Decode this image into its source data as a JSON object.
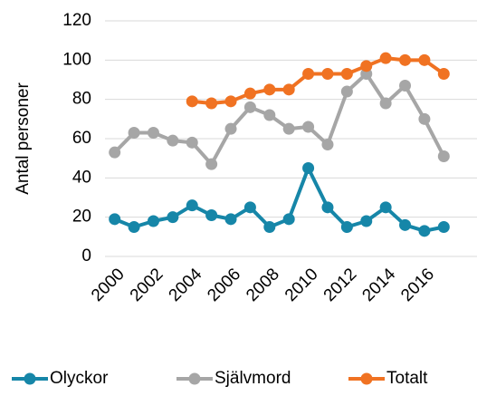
{
  "chart_data": {
    "type": "line",
    "y_label": "Antal personer",
    "x": [
      2000,
      2001,
      2002,
      2003,
      2004,
      2005,
      2006,
      2007,
      2008,
      2009,
      2010,
      2011,
      2012,
      2013,
      2014,
      2015,
      2016,
      2017
    ],
    "series": [
      {
        "name": "Olyckor",
        "color": "#1686a8",
        "values": [
          19,
          15,
          18,
          20,
          26,
          21,
          19,
          25,
          15,
          19,
          45,
          25,
          15,
          18,
          25,
          16,
          13,
          15
        ]
      },
      {
        "name": "Självmord",
        "color": "#a6a6a6",
        "values": [
          53,
          63,
          63,
          59,
          58,
          47,
          65,
          76,
          72,
          65,
          66,
          57,
          84,
          93,
          78,
          87,
          70,
          51
        ]
      },
      {
        "name": "Totalt",
        "color": "#f07222",
        "values": [
          null,
          null,
          null,
          null,
          79,
          78,
          79,
          83,
          85,
          85,
          93,
          93,
          93,
          97,
          101,
          100,
          100,
          93
        ]
      }
    ],
    "xlim": [
      1999.5,
      2017.5
    ],
    "xticks": [
      2000,
      2002,
      2004,
      2006,
      2008,
      2010,
      2012,
      2014,
      2016
    ],
    "ylim": [
      0,
      120
    ],
    "yticks": [
      0,
      20,
      40,
      60,
      80,
      100,
      120
    ],
    "grid": true,
    "legend": "bottom"
  }
}
